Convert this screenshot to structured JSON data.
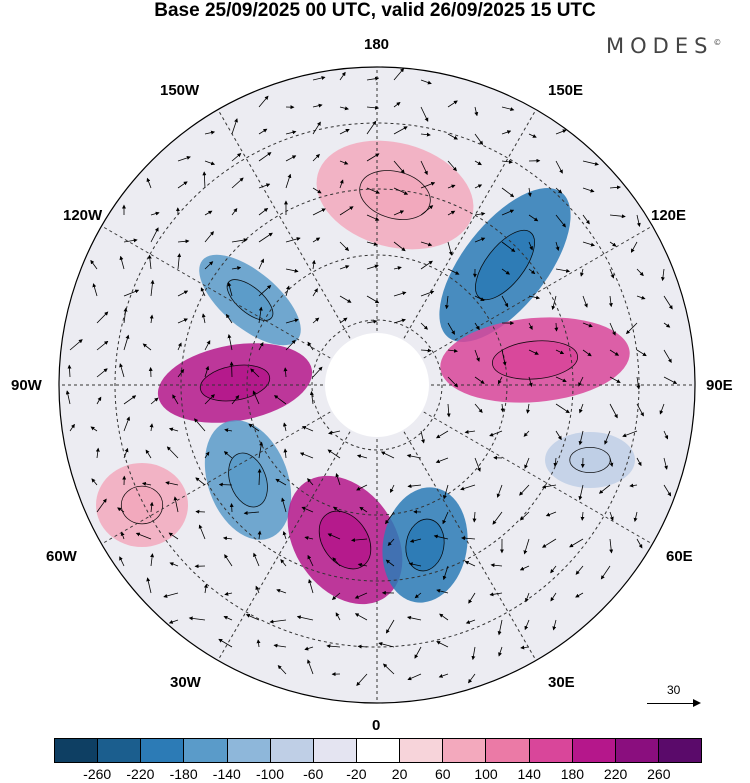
{
  "title": "Base 25/09/2025 00 UTC, valid 26/09/2025 15 UTC",
  "brand": "MODES",
  "brand_mark": "©",
  "longitude_labels": {
    "top": "180",
    "top_left": "150W",
    "top_right": "150E",
    "upper_left": "120W",
    "upper_right": "120E",
    "left": "90W",
    "right": "90E",
    "lower_left": "60W",
    "lower_right": "60E",
    "bottom_left": "30W",
    "bottom_right": "30E",
    "bottom": "0"
  },
  "reference_vector": "30",
  "colorbar": {
    "colors": [
      "#0e3f63",
      "#1b5e8e",
      "#2c7bb6",
      "#5a9bc9",
      "#8eb7da",
      "#bfcfe6",
      "#e4e4f1",
      "#ffffff",
      "#f7d4da",
      "#f3a9bd",
      "#eb7aa6",
      "#d9469a",
      "#b5178b",
      "#8a0e7e",
      "#5a0a6a"
    ],
    "ticks": [
      "-260",
      "-220",
      "-180",
      "-140",
      "-100",
      "-60",
      "-20",
      "20",
      "60",
      "100",
      "140",
      "180",
      "220",
      "260"
    ]
  },
  "anomaly_blobs": [
    {
      "name": "anomaly-positive-west",
      "color": "#b5178b",
      "value": 220
    },
    {
      "name": "anomaly-negative-northwest",
      "color": "#5a9bc9",
      "value": -140
    },
    {
      "name": "anomaly-negative-west-south",
      "color": "#5a9bc9",
      "value": -140
    },
    {
      "name": "anomaly-positive-atlantic",
      "color": "#b5178b",
      "value": 220
    },
    {
      "name": "anomaly-negative-europe",
      "color": "#2c7bb6",
      "value": -180
    },
    {
      "name": "anomaly-negative-siberia",
      "color": "#2c7bb6",
      "value": -180
    },
    {
      "name": "anomaly-positive-asia",
      "color": "#d9469a",
      "value": 180
    },
    {
      "name": "anomaly-positive-pacific",
      "color": "#f3a9bd",
      "value": 100
    },
    {
      "name": "anomaly-positive-southwest",
      "color": "#f3a9bd",
      "value": 60
    },
    {
      "name": "anomaly-negative-east",
      "color": "#bfcfe6",
      "value": -60
    }
  ]
}
